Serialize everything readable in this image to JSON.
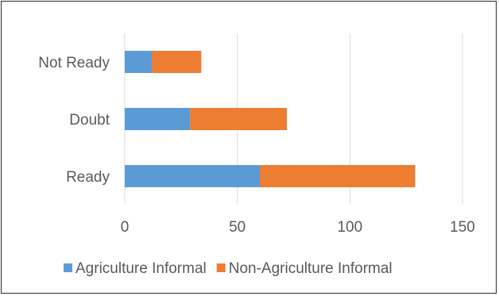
{
  "chart_data": {
    "type": "bar",
    "orientation": "horizontal",
    "stacked": true,
    "categories": [
      "Not Ready",
      "Doubt",
      "Ready"
    ],
    "series": [
      {
        "name": "Agriculture Informal",
        "values": [
          12,
          29,
          60
        ],
        "color": "#5B9BD5"
      },
      {
        "name": "Non-Agriculture Informal",
        "values": [
          22,
          43,
          69
        ],
        "color": "#ED7D31"
      }
    ],
    "xlim": [
      0,
      150
    ],
    "xticks": [
      "0",
      "50",
      "100",
      "150"
    ],
    "grid": true,
    "legend_position": "bottom",
    "title": "",
    "xlabel": "",
    "ylabel": ""
  }
}
